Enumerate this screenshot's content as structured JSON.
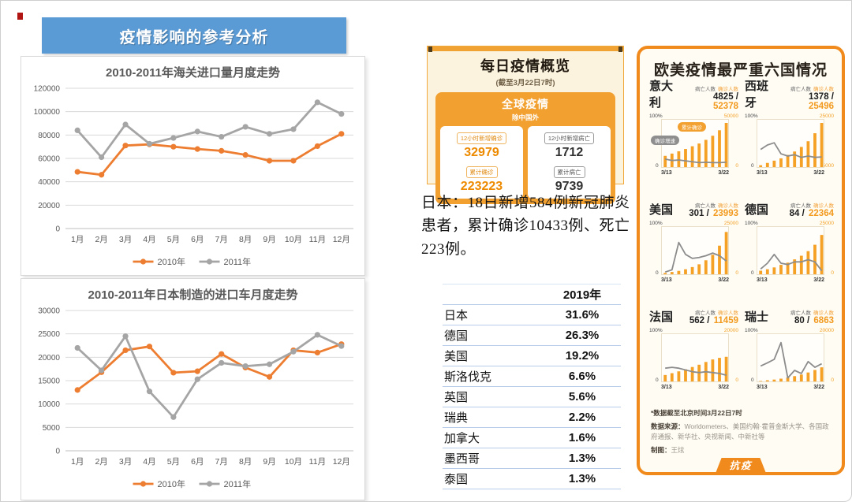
{
  "banner": {
    "title": "疫情影响的参考分析",
    "color": "#5B9BD5"
  },
  "chart_data": [
    {
      "type": "line",
      "title": "2010-2011年海关进口量月度走势",
      "categories": [
        "1月",
        "2月",
        "3月",
        "4月",
        "5月",
        "6月",
        "7月",
        "8月",
        "9月",
        "10月",
        "11月",
        "12月"
      ],
      "series": [
        {
          "name": "2010年",
          "color": "#ED7D31",
          "values": [
            48500,
            46000,
            71000,
            72000,
            70000,
            68000,
            66500,
            63000,
            58000,
            58000,
            70500,
            81000
          ]
        },
        {
          "name": "2011年",
          "color": "#A5A5A5",
          "values": [
            84000,
            61000,
            89000,
            72500,
            77500,
            83000,
            78500,
            87000,
            81000,
            85000,
            108000,
            98000
          ]
        }
      ],
      "ylim": [
        0,
        120000
      ],
      "yticks": [
        0,
        20000,
        40000,
        60000,
        80000,
        100000,
        120000
      ],
      "grid": true,
      "legend_position": "bottom"
    },
    {
      "type": "line",
      "title": "2010-2011年日本制造的进口车月度走势",
      "categories": [
        "1月",
        "2月",
        "3月",
        "4月",
        "5月",
        "6月",
        "7月",
        "8月",
        "9月",
        "10月",
        "11月",
        "12月"
      ],
      "series": [
        {
          "name": "2010年",
          "color": "#ED7D31",
          "values": [
            13000,
            16800,
            21500,
            22300,
            16700,
            17000,
            20700,
            17800,
            15800,
            21500,
            21000,
            22800
          ]
        },
        {
          "name": "2011年",
          "color": "#A5A5A5",
          "values": [
            22000,
            17200,
            24500,
            12700,
            7200,
            15300,
            18800,
            18100,
            18500,
            21200,
            24800,
            22400
          ]
        }
      ],
      "ylim": [
        0,
        30000
      ],
      "yticks": [
        0,
        5000,
        10000,
        15000,
        20000,
        25000,
        30000
      ],
      "grid": true,
      "legend_position": "bottom"
    }
  ],
  "daily_card": {
    "title": "每日疫情概览",
    "subtitle": "(截至3月22日7时)",
    "section_title": "全球疫情",
    "section_subtitle": "除中国外",
    "stats": [
      {
        "label": "12小时新增确诊",
        "value": "32979",
        "color": "orange"
      },
      {
        "label": "12小时新增病亡",
        "value": "1712",
        "color": "dark"
      },
      {
        "label": "累计确诊",
        "value": "223223",
        "color": "orange"
      },
      {
        "label": "累计病亡",
        "value": "9739",
        "color": "dark"
      }
    ]
  },
  "japan_note": "日本：18日新增584例新冠肺炎患者，累计确诊10433例、死亡223例。",
  "table": {
    "header": [
      "",
      "2019年"
    ],
    "rows": [
      [
        "日本",
        "31.6%"
      ],
      [
        "德国",
        "26.3%"
      ],
      [
        "美国",
        "19.2%"
      ],
      [
        "斯洛伐克",
        "6.6%"
      ],
      [
        "英国",
        "5.6%"
      ],
      [
        "瑞典",
        "2.2%"
      ],
      [
        "加拿大",
        "1.6%"
      ],
      [
        "墨西哥",
        "1.3%"
      ],
      [
        "泰国",
        "1.3%"
      ]
    ]
  },
  "panel": {
    "title": "欧美疫情最严重六国情况",
    "death_label": "病亡人数",
    "confirm_label": "确诊人数",
    "tag_confirmed": "累计确诊",
    "tag_growth": "确诊增速",
    "axis_left_top": "100%",
    "axis_left_bottom": "0",
    "x_start": "3/13",
    "x_end": "3/22",
    "bar_color": "#F5A125",
    "line_color": "#8C8C8C",
    "countries": [
      {
        "name": "意大利",
        "deaths": "4825",
        "confirmed": "52378",
        "right_max": "50000",
        "right_min": "0",
        "scale_min": 0,
        "scale_max": 50000,
        "bars": [
          14000,
          16500,
          19000,
          21500,
          24500,
          27500,
          31500,
          36000,
          42000,
          52378
        ],
        "line_pct": [
          18,
          15,
          16,
          14,
          12,
          10,
          11,
          10,
          10,
          11
        ]
      },
      {
        "name": "西班牙",
        "deaths": "1378",
        "confirmed": "25496",
        "right_max": "25000",
        "right_min": "5000",
        "scale_min": 5000,
        "scale_max": 25000,
        "bars": [
          6500,
          7500,
          8500,
          9500,
          11000,
          12500,
          14500,
          17000,
          20500,
          25496
        ],
        "line_pct": [
          40,
          50,
          55,
          30,
          25,
          28,
          22,
          25,
          22,
          23
        ]
      },
      {
        "name": "美国",
        "deaths": "301",
        "confirmed": "23993",
        "right_max": "25000",
        "right_min": "0",
        "scale_min": 0,
        "scale_max": 25000,
        "bars": [
          1600,
          2100,
          2700,
          3600,
          4800,
          6300,
          8500,
          11500,
          16500,
          23993
        ],
        "line_pct": [
          5,
          10,
          72,
          45,
          36,
          38,
          42,
          48,
          42,
          30
        ]
      },
      {
        "name": "德国",
        "deaths": "84",
        "confirmed": "22364",
        "right_max": "25000",
        "right_min": "0",
        "scale_min": 0,
        "scale_max": 25000,
        "bars": [
          2800,
          3600,
          4600,
          6000,
          7200,
          9000,
          11000,
          13500,
          17000,
          22364
        ],
        "line_pct": [
          12,
          25,
          45,
          25,
          22,
          28,
          28,
          33,
          28,
          8
        ]
      },
      {
        "name": "法国",
        "deaths": "562",
        "confirmed": "11459",
        "right_max": "20000",
        "right_min": "0",
        "scale_min": 0,
        "scale_max": 20000,
        "bars": [
          3500,
          4300,
          5100,
          6000,
          7000,
          8000,
          9200,
          10300,
          11000,
          11459
        ],
        "line_pct": [
          30,
          32,
          30,
          26,
          22,
          20,
          22,
          20,
          18,
          14
        ]
      },
      {
        "name": "瑞士",
        "deaths": "80",
        "confirmed": "6863",
        "right_max": "20000",
        "right_min": "0",
        "scale_min": 0,
        "scale_max": 20000,
        "bars": [
          900,
          1200,
          1500,
          1900,
          2400,
          3000,
          3700,
          4600,
          5700,
          6863
        ],
        "line_pct": [
          35,
          42,
          50,
          88,
          8,
          25,
          18,
          45,
          32,
          40
        ]
      }
    ],
    "footnote": "*数据截至北京时间3月22日7时",
    "source_label": "数据来源：",
    "source_text": "Worldometers、美国约翰·霍普金斯大学、各国政府通报、新华社、央视新闻、中新社等",
    "credit_label": "制图：",
    "credit_name": "王炫",
    "ribbon": "抗疫"
  }
}
